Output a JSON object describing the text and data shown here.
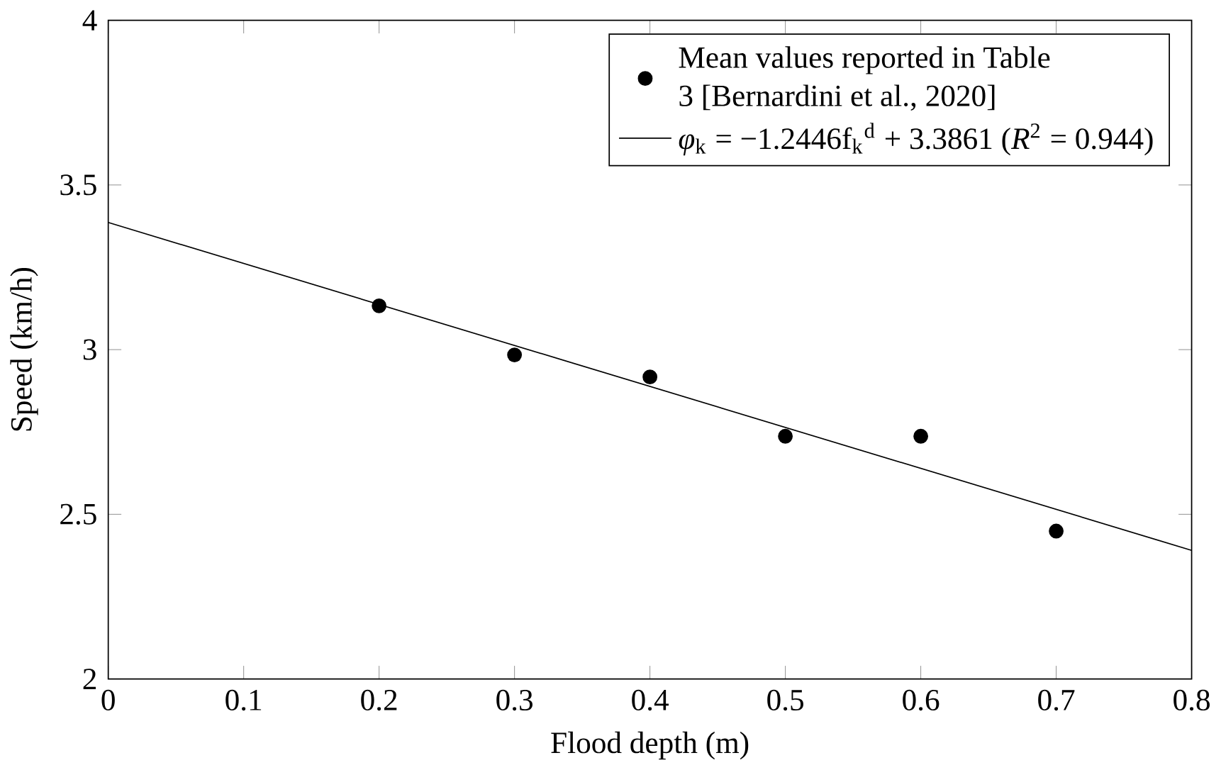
{
  "chart_data": {
    "type": "scatter",
    "xlabel": "Flood depth (m)",
    "ylabel": "Speed (km/h)",
    "x": [
      0.2,
      0.3,
      0.4,
      0.5,
      0.6,
      0.7
    ],
    "series": [
      {
        "name": "Mean values reported in Table 3 [Bernardini et al., 2020]",
        "color": "#000000",
        "values": [
          3.133,
          2.984,
          2.917,
          2.737,
          2.737,
          2.449
        ],
        "marker": "circle"
      },
      {
        "name": "*φ*$_{k}$ = −1.2446f$_{k}$$^{d}$ + 3.3861 (*R*$^{2}$ = 0.944)",
        "type": "line",
        "color": "#000000",
        "x": [
          0,
          0.8
        ],
        "values": [
          3.3861,
          2.3904
        ],
        "marker": "none",
        "line_style": "solid"
      }
    ],
    "xlim": [
      0,
      0.8
    ],
    "ylim": [
      2,
      4
    ],
    "xticks": [
      0,
      0.1,
      0.2,
      0.3,
      0.4,
      0.5,
      0.6,
      0.7,
      0.8
    ],
    "yticks": [
      2,
      2.5,
      3,
      3.5,
      4
    ],
    "grid": false,
    "legend": "top right"
  }
}
